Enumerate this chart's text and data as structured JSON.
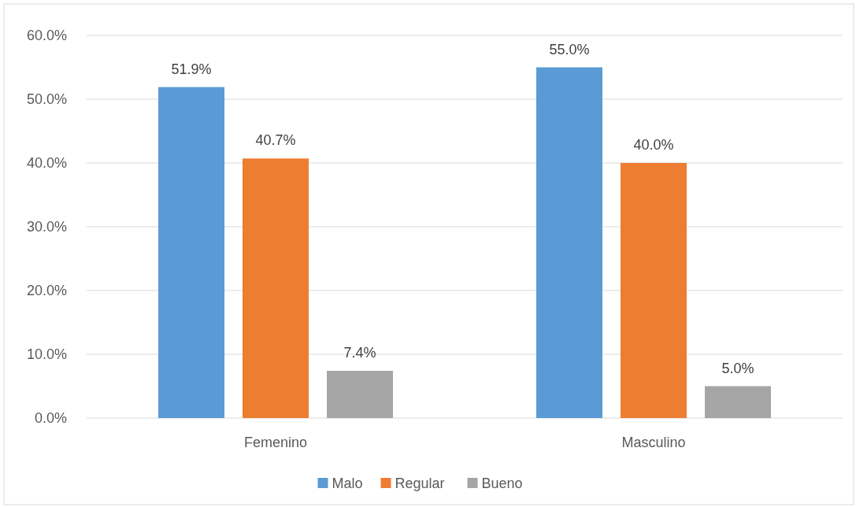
{
  "chart_data": {
    "type": "bar",
    "categories": [
      "Femenino",
      "Masculino"
    ],
    "series": [
      {
        "name": "Malo",
        "color": "#5b9bd5",
        "values": [
          51.9,
          55.0
        ],
        "value_labels": [
          "51.9%",
          "55.0%"
        ]
      },
      {
        "name": "Regular",
        "color": "#ed7d31",
        "values": [
          40.7,
          40.0
        ],
        "value_labels": [
          "40.7%",
          "40.0%"
        ]
      },
      {
        "name": "Bueno",
        "color": "#a5a5a5",
        "values": [
          7.4,
          5.0
        ],
        "value_labels": [
          "7.4%",
          "5.0%"
        ]
      }
    ],
    "ylim": [
      0,
      60
    ],
    "yticks": [
      {
        "value": 0,
        "label": "0.0%"
      },
      {
        "value": 10,
        "label": "10.0%"
      },
      {
        "value": 20,
        "label": "20.0%"
      },
      {
        "value": 30,
        "label": "30.0%"
      },
      {
        "value": 40,
        "label": "40.0%"
      },
      {
        "value": 50,
        "label": "50.0%"
      },
      {
        "value": 60,
        "label": "60.0%"
      }
    ],
    "grid": "y",
    "legend": "bottom"
  }
}
